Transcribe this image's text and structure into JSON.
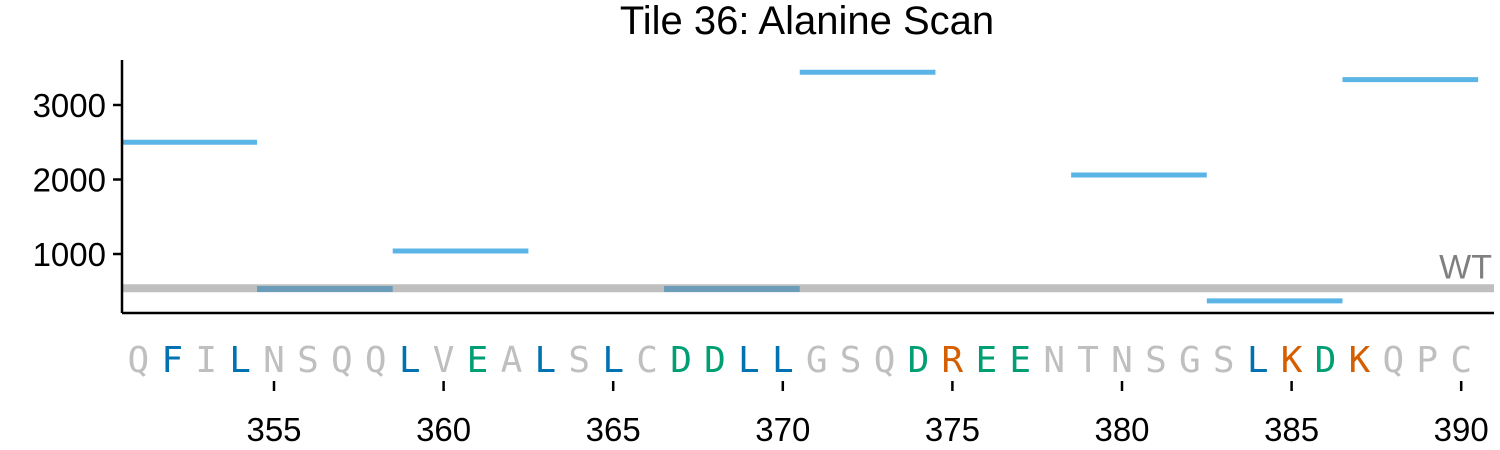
{
  "chart_data": {
    "type": "line",
    "title": "Tile 36: Alanine Scan",
    "xlabel": "",
    "ylabel": "",
    "xlim": [
      350.5,
      391
    ],
    "ylim": [
      330,
      3580
    ],
    "x_ticks": [
      355,
      360,
      365,
      370,
      375,
      380,
      385,
      390
    ],
    "y_ticks": [
      1000,
      2000,
      3000
    ],
    "grid": false,
    "wt_label": "WT",
    "wt_value": 540,
    "wt_color": "#bfbfbf",
    "segment_color": "#5ab4e5",
    "segments": [
      {
        "x_start": 350.5,
        "x_end": 354.5,
        "value": 2500
      },
      {
        "x_start": 354.5,
        "x_end": 358.5,
        "value": 530
      },
      {
        "x_start": 358.5,
        "x_end": 362.5,
        "value": 1040
      },
      {
        "x_start": 366.5,
        "x_end": 370.5,
        "value": 530
      },
      {
        "x_start": 370.5,
        "x_end": 374.5,
        "value": 3440
      },
      {
        "x_start": 378.5,
        "x_end": 382.5,
        "value": 2060
      },
      {
        "x_start": 382.5,
        "x_end": 386.5,
        "value": 370
      },
      {
        "x_start": 386.5,
        "x_end": 390.5,
        "value": 3340
      }
    ],
    "residue_start": 351,
    "residues": [
      {
        "aa": "Q",
        "color": "#bfbfbf"
      },
      {
        "aa": "F",
        "color": "#0072b2"
      },
      {
        "aa": "I",
        "color": "#bfbfbf"
      },
      {
        "aa": "L",
        "color": "#0072b2"
      },
      {
        "aa": "N",
        "color": "#bfbfbf"
      },
      {
        "aa": "S",
        "color": "#bfbfbf"
      },
      {
        "aa": "Q",
        "color": "#bfbfbf"
      },
      {
        "aa": "Q",
        "color": "#bfbfbf"
      },
      {
        "aa": "L",
        "color": "#0072b2"
      },
      {
        "aa": "V",
        "color": "#bfbfbf"
      },
      {
        "aa": "E",
        "color": "#009e73"
      },
      {
        "aa": "A",
        "color": "#bfbfbf"
      },
      {
        "aa": "L",
        "color": "#0072b2"
      },
      {
        "aa": "S",
        "color": "#bfbfbf"
      },
      {
        "aa": "L",
        "color": "#0072b2"
      },
      {
        "aa": "C",
        "color": "#bfbfbf"
      },
      {
        "aa": "D",
        "color": "#009e73"
      },
      {
        "aa": "D",
        "color": "#009e73"
      },
      {
        "aa": "L",
        "color": "#0072b2"
      },
      {
        "aa": "L",
        "color": "#0072b2"
      },
      {
        "aa": "G",
        "color": "#bfbfbf"
      },
      {
        "aa": "S",
        "color": "#bfbfbf"
      },
      {
        "aa": "Q",
        "color": "#bfbfbf"
      },
      {
        "aa": "D",
        "color": "#009e73"
      },
      {
        "aa": "R",
        "color": "#d55e00"
      },
      {
        "aa": "E",
        "color": "#009e73"
      },
      {
        "aa": "E",
        "color": "#009e73"
      },
      {
        "aa": "N",
        "color": "#bfbfbf"
      },
      {
        "aa": "T",
        "color": "#bfbfbf"
      },
      {
        "aa": "N",
        "color": "#bfbfbf"
      },
      {
        "aa": "S",
        "color": "#bfbfbf"
      },
      {
        "aa": "G",
        "color": "#bfbfbf"
      },
      {
        "aa": "S",
        "color": "#bfbfbf"
      },
      {
        "aa": "L",
        "color": "#0072b2"
      },
      {
        "aa": "K",
        "color": "#d55e00"
      },
      {
        "aa": "D",
        "color": "#009e73"
      },
      {
        "aa": "K",
        "color": "#d55e00"
      },
      {
        "aa": "Q",
        "color": "#bfbfbf"
      },
      {
        "aa": "P",
        "color": "#bfbfbf"
      },
      {
        "aa": "C",
        "color": "#bfbfbf"
      }
    ]
  }
}
